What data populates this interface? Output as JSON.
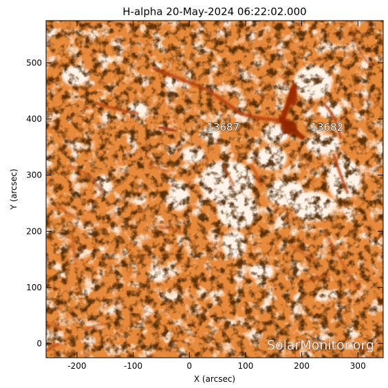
{
  "title": "H-alpha 20-May-2024 06:22:02.000",
  "x_axis_label": "X (arcsec)",
  "y_axis_label": "Y (arcsec)",
  "x_ticks": [
    "-200",
    "-100",
    "0",
    "100",
    "200",
    "300"
  ],
  "y_ticks": [
    "0",
    "100",
    "200",
    "300",
    "400",
    "500"
  ],
  "regions": [
    {
      "label": "13687",
      "x": 60,
      "y": 385
    },
    {
      "label": "13682",
      "x": 245,
      "y": 385
    }
  ],
  "watermark": "SolarMonitor.org",
  "image_semantics": "H-alpha chromosphere image",
  "colors": {
    "base": "#e88a3c",
    "dark_filament": "#b8400f",
    "bright_plage": "#fff1e4",
    "frame": "#000000"
  },
  "axis_ranges": {
    "x": [
      -255,
      345
    ],
    "y": [
      -25,
      575
    ]
  }
}
